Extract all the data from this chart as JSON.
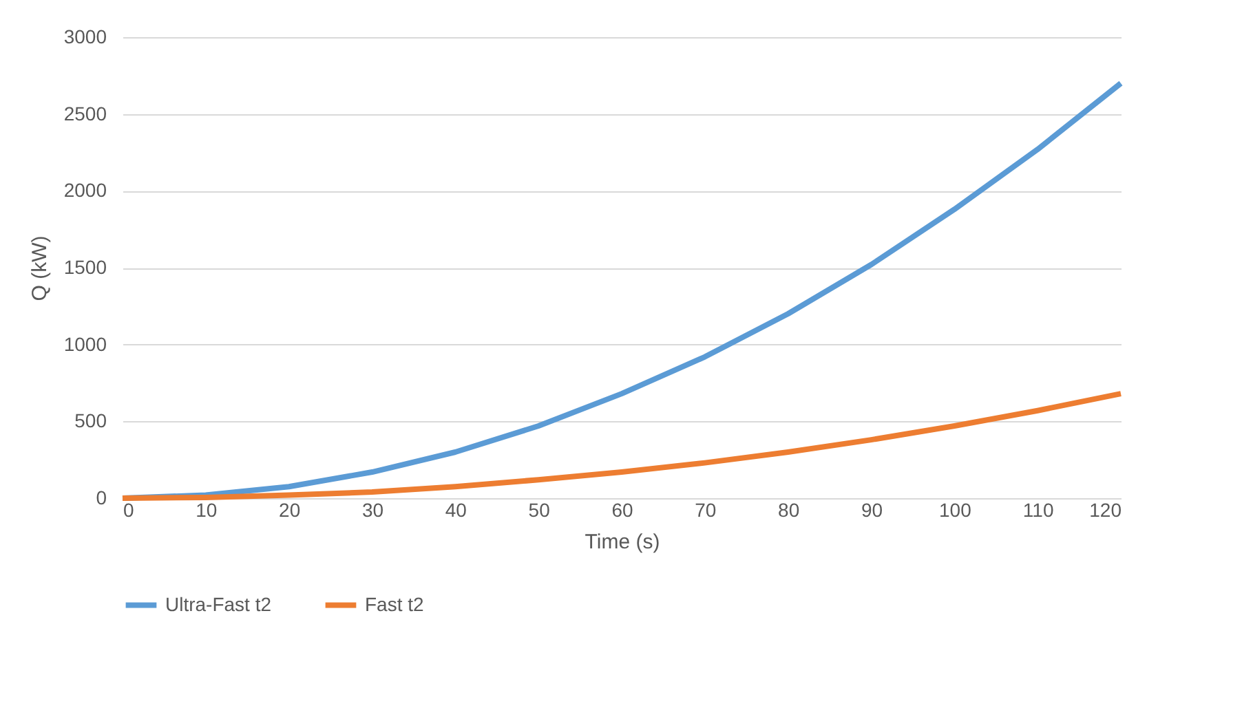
{
  "chart_data": {
    "type": "line",
    "xlabel": "Time (s)",
    "ylabel": "Q (kW)",
    "x": [
      0,
      10,
      20,
      30,
      40,
      50,
      60,
      70,
      80,
      90,
      100,
      110,
      120
    ],
    "series": [
      {
        "name": "Ultra-Fast t2",
        "color": "#5b9bd5",
        "values": [
          0,
          20,
          75,
          170,
          300,
          470,
          680,
          920,
          1200,
          1520,
          1880,
          2270,
          2700
        ]
      },
      {
        "name": "Fast t2",
        "color": "#ed7d31",
        "values": [
          0,
          5,
          20,
          40,
          75,
          120,
          170,
          230,
          300,
          380,
          470,
          570,
          680
        ]
      }
    ],
    "xlim": [
      0,
      120
    ],
    "xticks": [
      0,
      10,
      20,
      30,
      40,
      50,
      60,
      70,
      80,
      90,
      100,
      110,
      120
    ],
    "ylim": [
      0,
      3000
    ],
    "yticks": [
      0,
      500,
      1000,
      1500,
      2000,
      2500,
      3000
    ],
    "grid": "y",
    "legend": "bottom",
    "marker": "none",
    "line_style": "solid"
  }
}
